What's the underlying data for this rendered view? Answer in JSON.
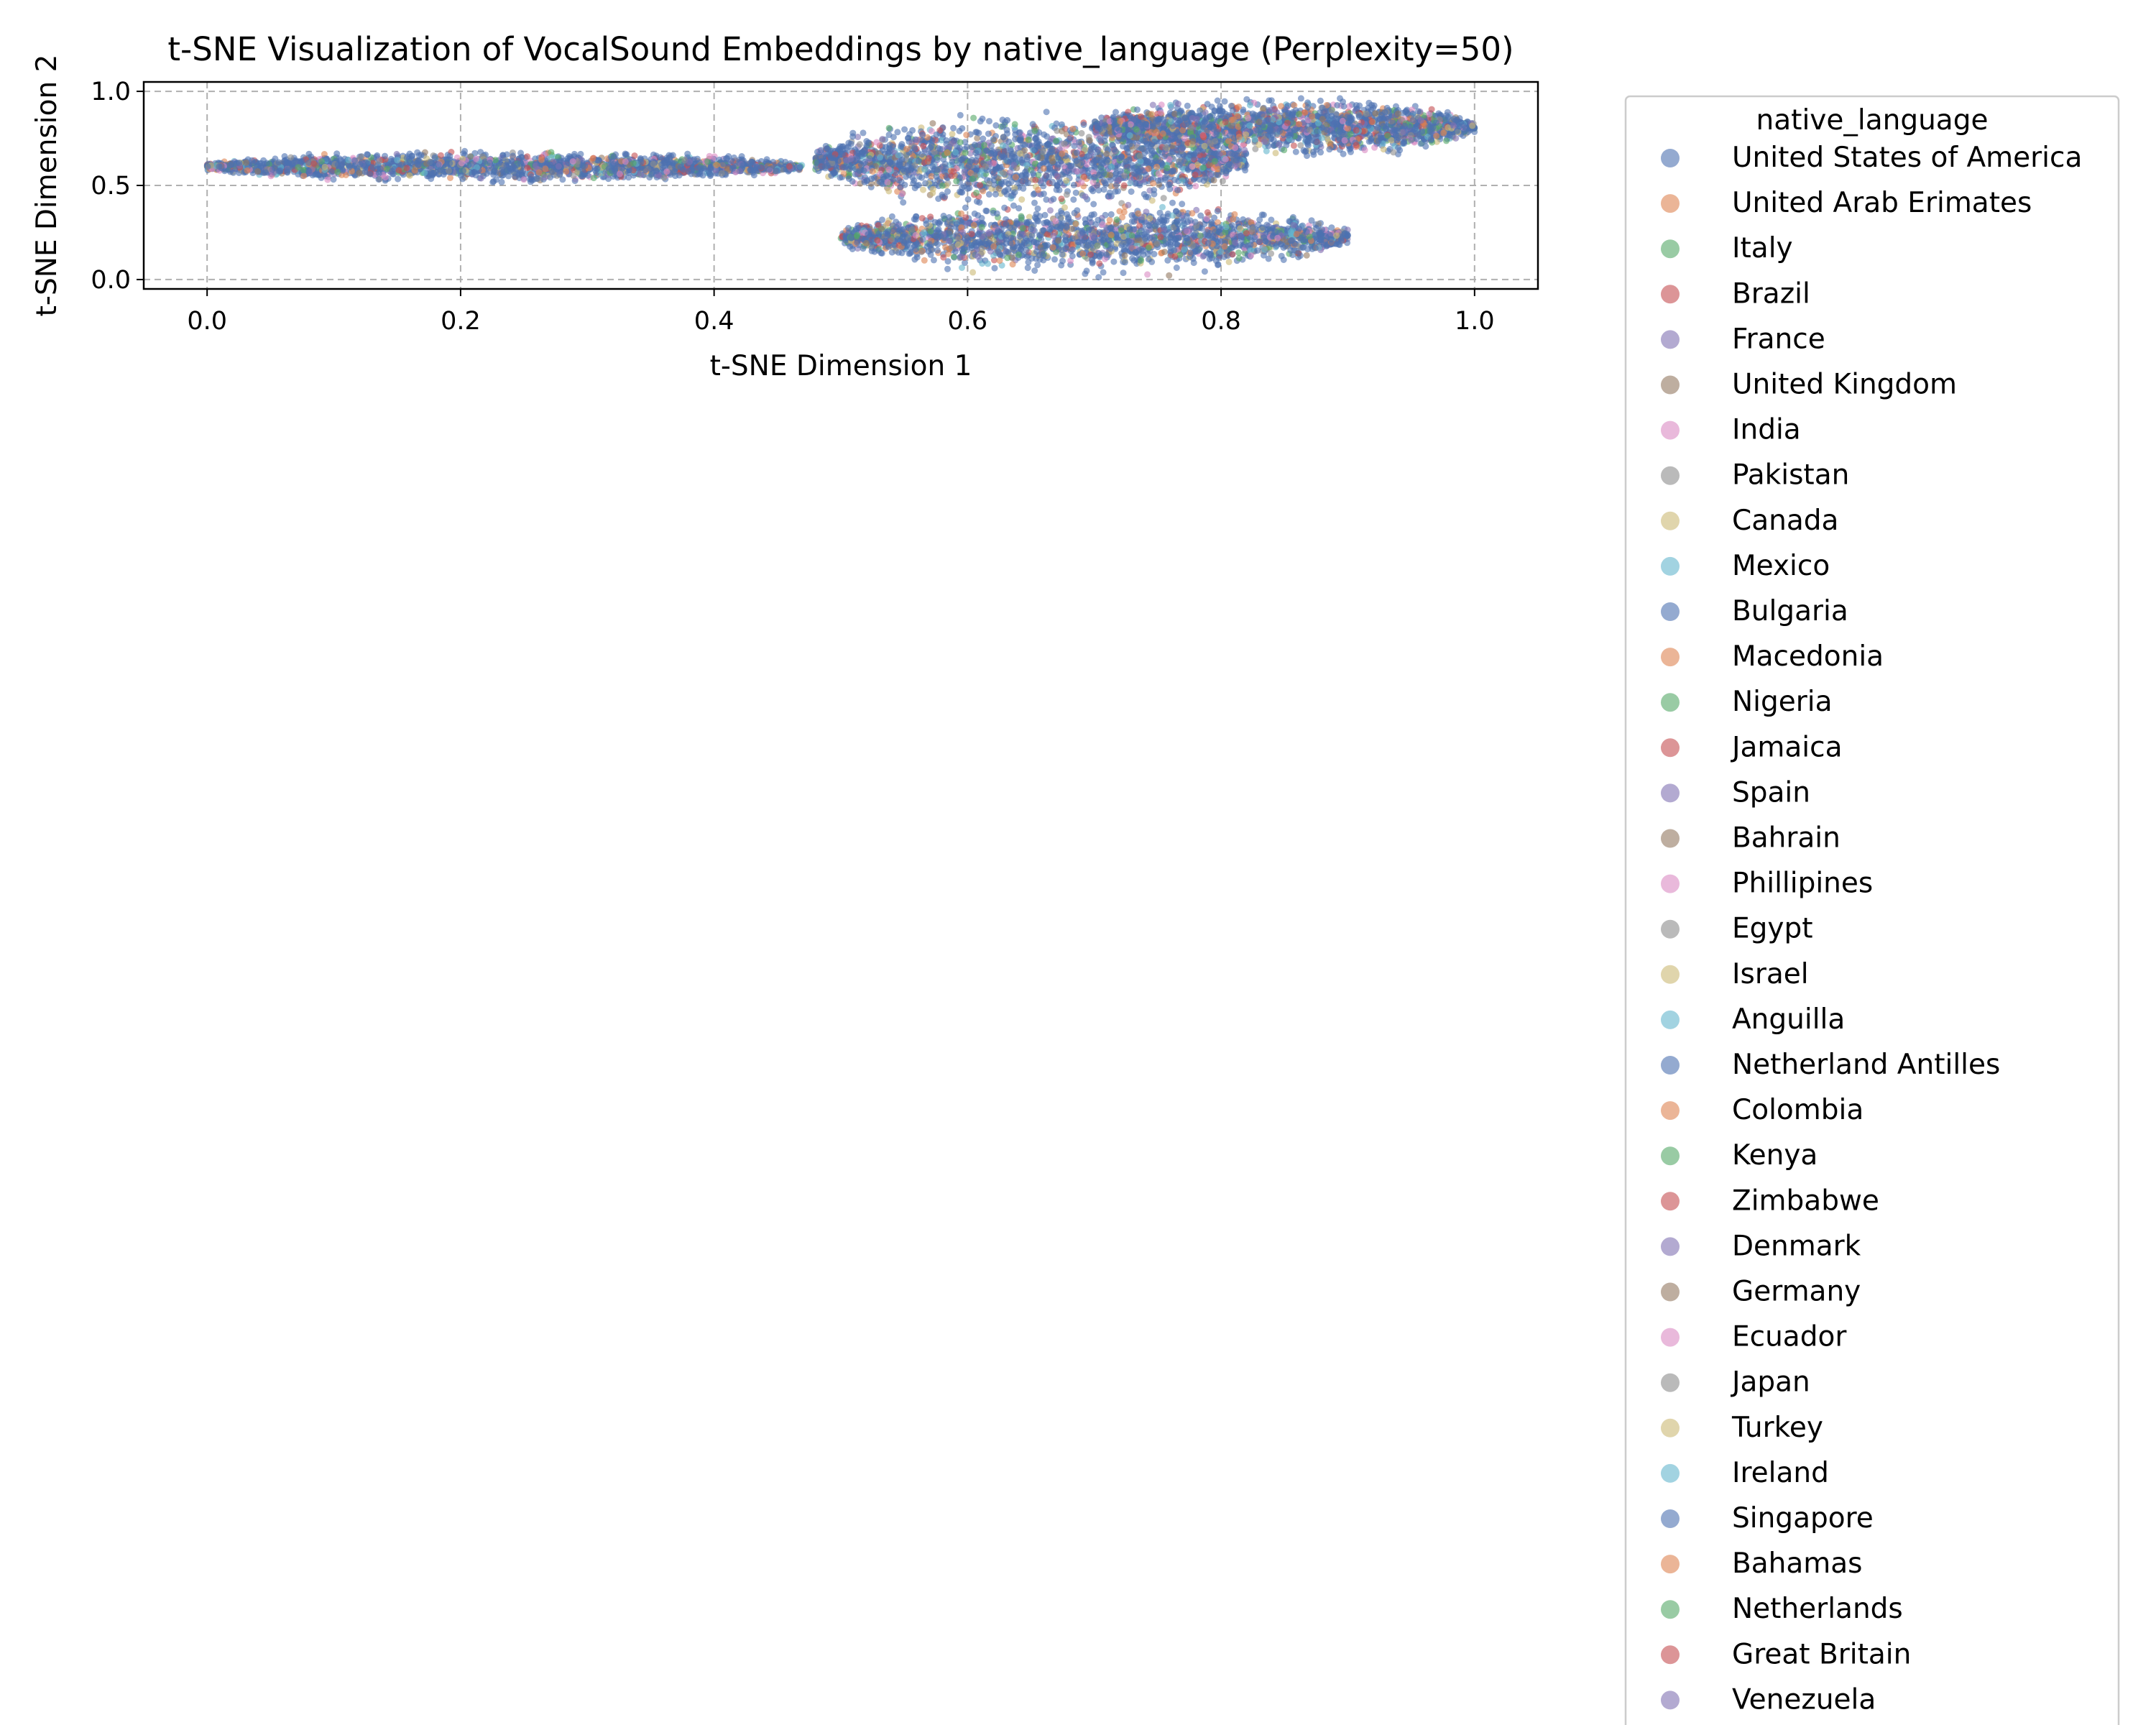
{
  "chart_data": {
    "type": "scatter",
    "title": "t-SNE Visualization of VocalSound Embeddings by native_language (Perplexity=50)",
    "xlabel": "t-SNE Dimension 1",
    "ylabel": "t-SNE Dimension 2",
    "xlim": [
      -0.05,
      1.05
    ],
    "ylim": [
      -0.05,
      1.05
    ],
    "xticks": [
      "0.0",
      "0.2",
      "0.4",
      "0.6",
      "0.8",
      "1.0"
    ],
    "yticks": [
      "0.0",
      "0.5",
      "1.0"
    ],
    "grid": true,
    "legend": {
      "title": "native_language",
      "placement": "outside-right"
    },
    "series": [
      {
        "name": "United States of America",
        "color": "#4c72b0"
      },
      {
        "name": "United Arab Erimates",
        "color": "#dd8452"
      },
      {
        "name": "Italy",
        "color": "#55a868"
      },
      {
        "name": "Brazil",
        "color": "#c44e52"
      },
      {
        "name": "France",
        "color": "#8172b3"
      },
      {
        "name": "United Kingdom",
        "color": "#937860"
      },
      {
        "name": "India",
        "color": "#da8bc3"
      },
      {
        "name": "Pakistan",
        "color": "#8c8c8c"
      },
      {
        "name": "Canada",
        "color": "#ccb974"
      },
      {
        "name": "Mexico",
        "color": "#64b5cd"
      },
      {
        "name": "Bulgaria",
        "color": "#4c72b0"
      },
      {
        "name": "Macedonia",
        "color": "#dd8452"
      },
      {
        "name": "Nigeria",
        "color": "#55a868"
      },
      {
        "name": "Jamaica",
        "color": "#c44e52"
      },
      {
        "name": "Spain",
        "color": "#8172b3"
      },
      {
        "name": "Bahrain",
        "color": "#937860"
      },
      {
        "name": "Phillipines",
        "color": "#da8bc3"
      },
      {
        "name": "Egypt",
        "color": "#8c8c8c"
      },
      {
        "name": "Israel",
        "color": "#ccb974"
      },
      {
        "name": "Anguilla",
        "color": "#64b5cd"
      },
      {
        "name": "Netherland Antilles",
        "color": "#4c72b0"
      },
      {
        "name": "Colombia",
        "color": "#dd8452"
      },
      {
        "name": "Kenya",
        "color": "#55a868"
      },
      {
        "name": "Zimbabwe",
        "color": "#c44e52"
      },
      {
        "name": "Denmark",
        "color": "#8172b3"
      },
      {
        "name": "Germany",
        "color": "#937860"
      },
      {
        "name": "Ecuador",
        "color": "#da8bc3"
      },
      {
        "name": "Japan",
        "color": "#8c8c8c"
      },
      {
        "name": "Turkey",
        "color": "#ccb974"
      },
      {
        "name": "Ireland",
        "color": "#64b5cd"
      },
      {
        "name": "Singapore",
        "color": "#4c72b0"
      },
      {
        "name": "Bahamas",
        "color": "#dd8452"
      },
      {
        "name": "Netherlands",
        "color": "#55a868"
      },
      {
        "name": "Great Britain",
        "color": "#c44e52"
      },
      {
        "name": "Venezuela",
        "color": "#8172b3"
      }
    ],
    "clusters": [
      {
        "x": [
          0.0,
          0.47
        ],
        "y": [
          0.5,
          0.7
        ],
        "density": "high"
      },
      {
        "x": [
          0.48,
          0.82
        ],
        "y": [
          0.33,
          0.93
        ],
        "density": "high"
      },
      {
        "x": [
          0.5,
          0.9
        ],
        "y": [
          0.0,
          0.45
        ],
        "density": "high"
      },
      {
        "x": [
          0.7,
          1.0
        ],
        "y": [
          0.62,
          1.0
        ],
        "density": "high"
      }
    ]
  }
}
